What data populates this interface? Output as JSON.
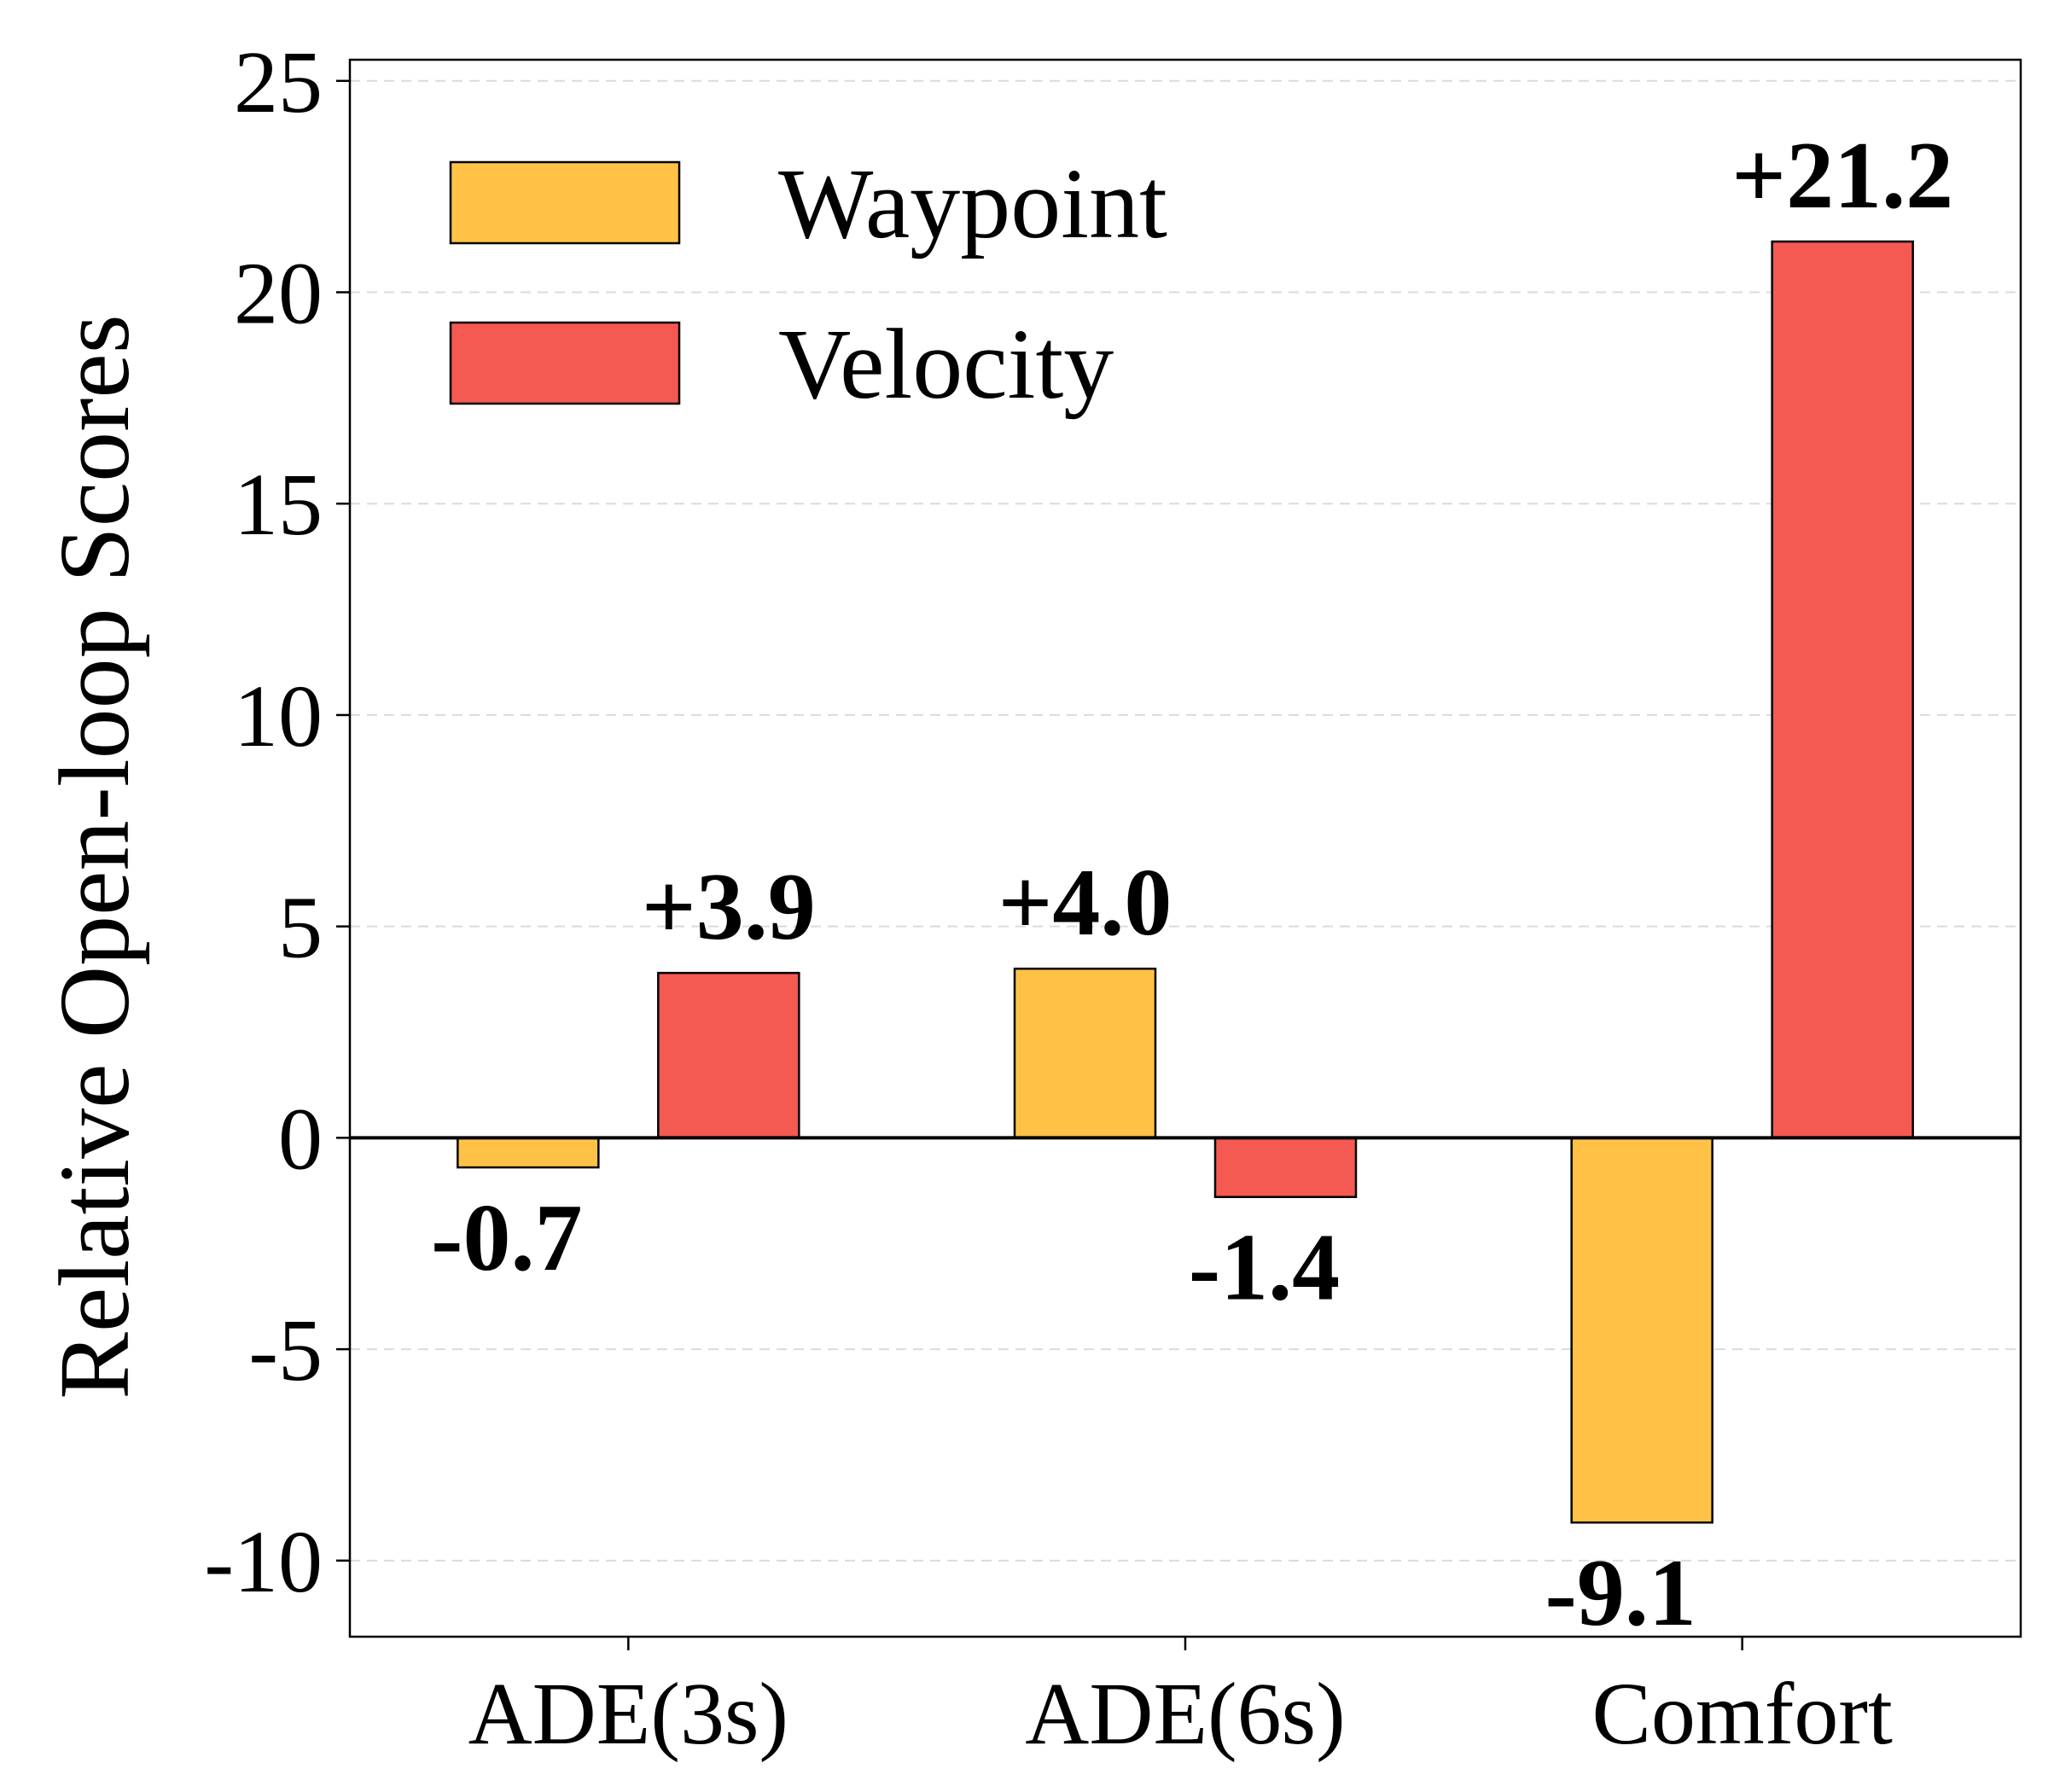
{
  "chart_data": {
    "type": "bar",
    "title": "",
    "xlabel": "",
    "ylabel": "Relative Open-loop Scores",
    "categories": [
      "ADE(3s)",
      "ADE(6s)",
      "Comfort"
    ],
    "series": [
      {
        "name": "Waypoint",
        "values": [
          -0.7,
          4.0,
          -9.1
        ],
        "labels": [
          "-0.7",
          "+4.0",
          "-9.1"
        ],
        "color": "#FFC247"
      },
      {
        "name": "Velocity",
        "values": [
          3.9,
          -1.4,
          21.2
        ],
        "labels": [
          "+3.9",
          "-1.4",
          "+21.2"
        ],
        "color": "#F45952"
      }
    ],
    "ylim": [
      -11.8,
      25.5
    ],
    "yticks": [
      -10,
      -5,
      0,
      5,
      10,
      15,
      20,
      25
    ],
    "ytick_labels": [
      "-10",
      "-5",
      "0",
      "5",
      "10",
      "15",
      "20",
      "25"
    ],
    "grid": "horizontal dashed",
    "legend_position": "top-left",
    "zero_line": true
  }
}
